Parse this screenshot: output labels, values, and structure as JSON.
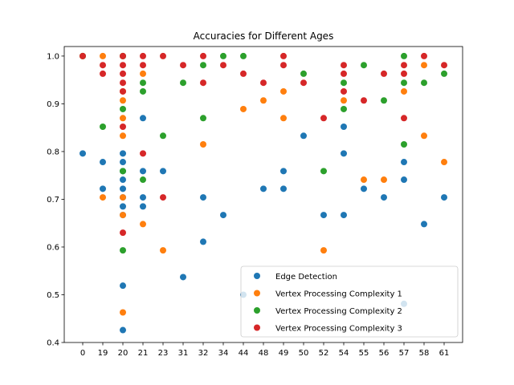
{
  "chart_data": {
    "type": "scatter",
    "title": "Accuracies for Different Ages",
    "xlabel": "",
    "ylabel": "",
    "categories": [
      "0",
      "19",
      "20",
      "21",
      "23",
      "31",
      "32",
      "34",
      "44",
      "48",
      "49",
      "50",
      "52",
      "54",
      "55",
      "56",
      "57",
      "58",
      "61"
    ],
    "ylim": [
      0.4,
      1.02
    ],
    "yticks": [
      "0.4",
      "0.5",
      "0.6",
      "0.7",
      "0.8",
      "0.9",
      "1.0"
    ],
    "grid": false,
    "legend_position": "lower-right",
    "series": [
      {
        "name": "Edge Detection",
        "color": "#1f77b4",
        "points": [
          [
            "0",
            0.796
          ],
          [
            "19",
            0.778
          ],
          [
            "19",
            0.722
          ],
          [
            "20",
            0.796
          ],
          [
            "20",
            0.778
          ],
          [
            "20",
            0.759
          ],
          [
            "20",
            0.741
          ],
          [
            "20",
            0.722
          ],
          [
            "20",
            0.704
          ],
          [
            "20",
            0.685
          ],
          [
            "20",
            0.667
          ],
          [
            "20",
            0.519
          ],
          [
            "20",
            0.426
          ],
          [
            "21",
            0.87
          ],
          [
            "21",
            0.759
          ],
          [
            "21",
            0.704
          ],
          [
            "21",
            0.685
          ],
          [
            "23",
            0.759
          ],
          [
            "31",
            0.537
          ],
          [
            "32",
            0.704
          ],
          [
            "32",
            0.611
          ],
          [
            "34",
            0.667
          ],
          [
            "44",
            0.5
          ],
          [
            "48",
            0.722
          ],
          [
            "49",
            0.759
          ],
          [
            "49",
            0.722
          ],
          [
            "50",
            0.833
          ],
          [
            "52",
            0.667
          ],
          [
            "54",
            0.852
          ],
          [
            "54",
            0.796
          ],
          [
            "54",
            0.667
          ],
          [
            "55",
            0.722
          ],
          [
            "56",
            0.704
          ],
          [
            "57",
            0.778
          ],
          [
            "57",
            0.741
          ],
          [
            "57",
            0.481
          ],
          [
            "58",
            0.648
          ],
          [
            "61",
            0.704
          ]
        ]
      },
      {
        "name": "Vertex Processing Complexity 1",
        "color": "#ff7f0e",
        "points": [
          [
            "0",
            1.0
          ],
          [
            "19",
            1.0
          ],
          [
            "19",
            0.704
          ],
          [
            "20",
            1.0
          ],
          [
            "20",
            0.926
          ],
          [
            "20",
            0.907
          ],
          [
            "20",
            0.87
          ],
          [
            "20",
            0.833
          ],
          [
            "20",
            0.704
          ],
          [
            "20",
            0.667
          ],
          [
            "20",
            0.463
          ],
          [
            "21",
            0.963
          ],
          [
            "21",
            0.648
          ],
          [
            "23",
            0.593
          ],
          [
            "32",
            0.815
          ],
          [
            "44",
            0.889
          ],
          [
            "48",
            0.907
          ],
          [
            "49",
            0.926
          ],
          [
            "49",
            0.87
          ],
          [
            "52",
            0.593
          ],
          [
            "54",
            0.907
          ],
          [
            "55",
            0.741
          ],
          [
            "56",
            0.741
          ],
          [
            "57",
            0.926
          ],
          [
            "58",
            0.981
          ],
          [
            "58",
            0.833
          ],
          [
            "61",
            0.778
          ]
        ]
      },
      {
        "name": "Vertex Processing Complexity 2",
        "color": "#2ca02c",
        "points": [
          [
            "0",
            1.0
          ],
          [
            "19",
            0.852
          ],
          [
            "20",
            1.0
          ],
          [
            "20",
            0.889
          ],
          [
            "20",
            0.759
          ],
          [
            "20",
            0.593
          ],
          [
            "21",
            0.944
          ],
          [
            "21",
            0.926
          ],
          [
            "21",
            0.741
          ],
          [
            "23",
            0.833
          ],
          [
            "31",
            0.944
          ],
          [
            "32",
            0.981
          ],
          [
            "32",
            0.87
          ],
          [
            "34",
            1.0
          ],
          [
            "44",
            1.0
          ],
          [
            "50",
            0.963
          ],
          [
            "52",
            0.759
          ],
          [
            "54",
            0.944
          ],
          [
            "54",
            0.889
          ],
          [
            "55",
            0.981
          ],
          [
            "56",
            0.907
          ],
          [
            "57",
            1.0
          ],
          [
            "57",
            0.944
          ],
          [
            "57",
            0.815
          ],
          [
            "58",
            0.944
          ],
          [
            "61",
            0.963
          ]
        ]
      },
      {
        "name": "Vertex Processing Complexity 3",
        "color": "#d62728",
        "points": [
          [
            "0",
            1.0
          ],
          [
            "19",
            0.981
          ],
          [
            "19",
            0.963
          ],
          [
            "20",
            1.0
          ],
          [
            "20",
            0.981
          ],
          [
            "20",
            0.963
          ],
          [
            "20",
            0.944
          ],
          [
            "20",
            0.926
          ],
          [
            "20",
            0.852
          ],
          [
            "20",
            0.63
          ],
          [
            "21",
            1.0
          ],
          [
            "21",
            0.981
          ],
          [
            "21",
            0.796
          ],
          [
            "23",
            1.0
          ],
          [
            "23",
            0.704
          ],
          [
            "31",
            0.981
          ],
          [
            "32",
            1.0
          ],
          [
            "32",
            0.944
          ],
          [
            "34",
            0.981
          ],
          [
            "44",
            0.963
          ],
          [
            "48",
            0.944
          ],
          [
            "49",
            1.0
          ],
          [
            "49",
            0.981
          ],
          [
            "50",
            0.944
          ],
          [
            "52",
            0.87
          ],
          [
            "54",
            0.981
          ],
          [
            "54",
            0.963
          ],
          [
            "54",
            0.926
          ],
          [
            "55",
            0.907
          ],
          [
            "56",
            0.963
          ],
          [
            "57",
            0.981
          ],
          [
            "57",
            0.963
          ],
          [
            "57",
            0.87
          ],
          [
            "58",
            1.0
          ],
          [
            "61",
            0.981
          ]
        ]
      }
    ]
  }
}
